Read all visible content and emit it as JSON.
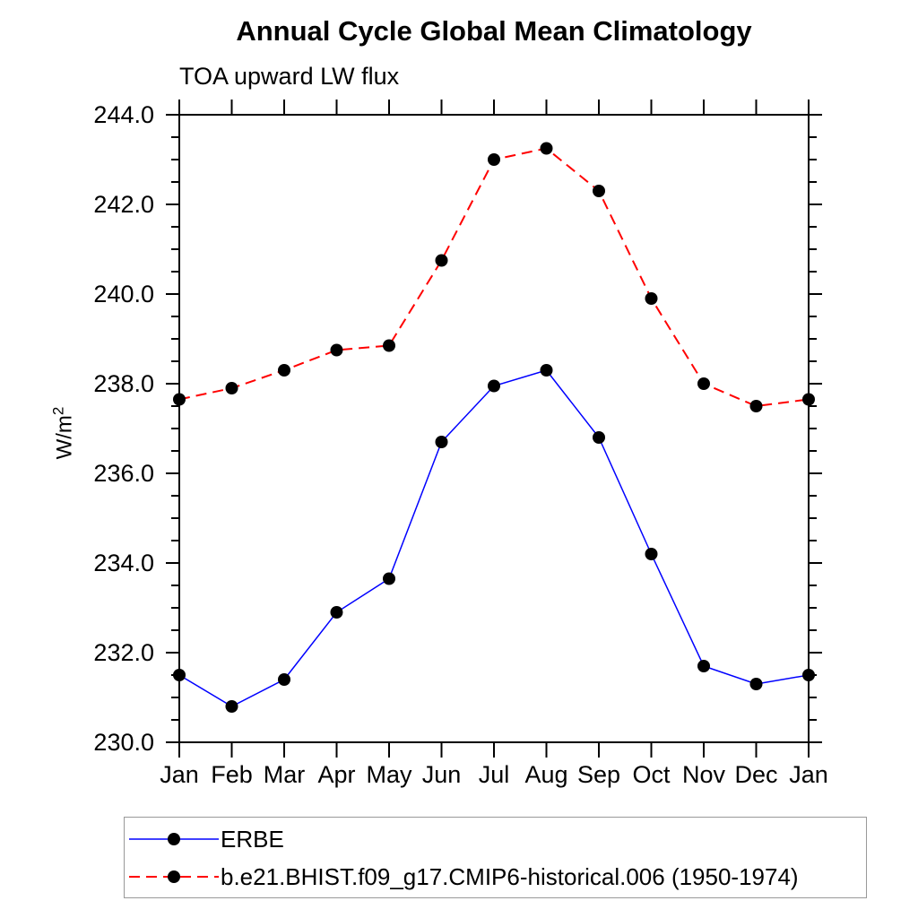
{
  "chart_data": {
    "type": "line",
    "title": "Annual Cycle Global Mean Climatology",
    "subtitle": "TOA upward LW flux",
    "ylabel_base": "W/m",
    "ylabel_exp": "2",
    "categories": [
      "Jan",
      "Feb",
      "Mar",
      "Apr",
      "May",
      "Jun",
      "Jul",
      "Aug",
      "Sep",
      "Oct",
      "Nov",
      "Dec",
      "Jan"
    ],
    "ylim": [
      230.0,
      244.0
    ],
    "ytick_major_interval": 2.0,
    "ytick_minor_interval": 0.5,
    "ytick_labels": [
      "230.0",
      "232.0",
      "234.0",
      "236.0",
      "238.0",
      "240.0",
      "242.0",
      "244.0"
    ],
    "grid": false,
    "axis_color": "#000000",
    "legend_position": "bottom-left",
    "series": [
      {
        "name": "ERBE",
        "line_color": "#0000ff",
        "line_style": "solid",
        "line_width": 1.5,
        "marker": "filled-circle",
        "marker_color": "#000000",
        "values": [
          231.5,
          230.8,
          231.4,
          232.9,
          233.65,
          236.7,
          237.95,
          238.3,
          236.8,
          234.2,
          231.7,
          231.3,
          231.5
        ]
      },
      {
        "name": "b.e21.BHIST.f09_g17.CMIP6-historical.006 (1950-1974)",
        "line_color": "#ff0000",
        "line_style": "dashed",
        "line_width": 2,
        "marker": "filled-circle",
        "marker_color": "#000000",
        "values": [
          237.65,
          237.9,
          238.3,
          238.75,
          238.85,
          240.75,
          243.0,
          243.25,
          242.3,
          239.9,
          238.0,
          237.5,
          237.65
        ]
      }
    ]
  }
}
